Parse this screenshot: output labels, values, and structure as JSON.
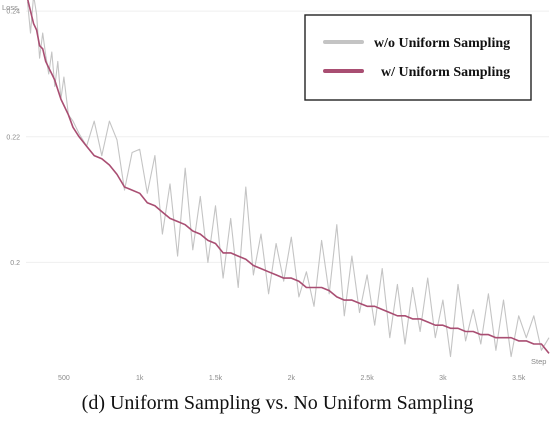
{
  "caption": "(d) Uniform Sampling vs. No Uniform Sampling",
  "chart_data": {
    "type": "line",
    "ylabel": "Loss",
    "xlabel": "Step",
    "xlim": [
      250,
      3700
    ],
    "ylim": [
      0.1835,
      0.2405
    ],
    "x_ticks": [
      500,
      1000,
      1500,
      2000,
      2500,
      3000,
      3500
    ],
    "x_tick_labels": [
      "500",
      "1k",
      "1.5k",
      "2k",
      "2.5k",
      "3k",
      "3.5k"
    ],
    "y_ticks": [
      0.2,
      0.22,
      0.24
    ],
    "y_tick_labels": [
      "0.2",
      "0.22",
      "0.24"
    ],
    "grid": true,
    "legend_position": "top-right",
    "series": [
      {
        "name": "w/o Uniform Sampling",
        "color": "#c4c4c4",
        "x": [
          260,
          280,
          300,
          320,
          340,
          360,
          380,
          400,
          420,
          440,
          460,
          480,
          500,
          530,
          560,
          600,
          650,
          700,
          750,
          800,
          850,
          900,
          950,
          1000,
          1050,
          1100,
          1150,
          1200,
          1250,
          1300,
          1350,
          1400,
          1450,
          1500,
          1550,
          1600,
          1650,
          1700,
          1750,
          1800,
          1850,
          1900,
          1950,
          2000,
          2050,
          2100,
          2150,
          2200,
          2250,
          2300,
          2350,
          2400,
          2450,
          2500,
          2550,
          2600,
          2650,
          2700,
          2750,
          2800,
          2850,
          2900,
          2950,
          3000,
          3050,
          3100,
          3150,
          3200,
          3250,
          3300,
          3350,
          3400,
          3450,
          3500,
          3550,
          3600,
          3650,
          3700
        ],
        "values": [
          0.2415,
          0.2365,
          0.2425,
          0.2395,
          0.2325,
          0.2365,
          0.233,
          0.23,
          0.2335,
          0.228,
          0.232,
          0.226,
          0.2295,
          0.2235,
          0.2225,
          0.2205,
          0.2185,
          0.2225,
          0.217,
          0.2225,
          0.2195,
          0.2115,
          0.2175,
          0.218,
          0.211,
          0.217,
          0.2045,
          0.2125,
          0.201,
          0.215,
          0.202,
          0.2105,
          0.2,
          0.209,
          0.1975,
          0.207,
          0.196,
          0.212,
          0.198,
          0.2045,
          0.195,
          0.203,
          0.197,
          0.204,
          0.1945,
          0.1985,
          0.193,
          0.2035,
          0.195,
          0.206,
          0.1915,
          0.201,
          0.192,
          0.198,
          0.19,
          0.199,
          0.188,
          0.1965,
          0.187,
          0.196,
          0.189,
          0.1975,
          0.188,
          0.194,
          0.185,
          0.1965,
          0.1875,
          0.1925,
          0.187,
          0.195,
          0.186,
          0.194,
          0.185,
          0.1915,
          0.188,
          0.1915,
          0.186,
          0.188
        ]
      },
      {
        "name": "w/ Uniform Sampling",
        "color": "#a94e72",
        "x": [
          260,
          280,
          300,
          320,
          340,
          360,
          380,
          400,
          420,
          440,
          460,
          480,
          500,
          530,
          560,
          600,
          650,
          700,
          750,
          800,
          850,
          900,
          950,
          1000,
          1050,
          1100,
          1150,
          1200,
          1250,
          1300,
          1350,
          1400,
          1450,
          1500,
          1550,
          1600,
          1650,
          1700,
          1750,
          1800,
          1850,
          1900,
          1950,
          2000,
          2050,
          2100,
          2150,
          2200,
          2250,
          2300,
          2350,
          2400,
          2450,
          2500,
          2550,
          2600,
          2650,
          2700,
          2750,
          2800,
          2850,
          2900,
          2950,
          3000,
          3050,
          3100,
          3150,
          3200,
          3250,
          3300,
          3350,
          3400,
          3450,
          3500,
          3550,
          3600,
          3650,
          3700
        ],
        "values": [
          0.242,
          0.24,
          0.238,
          0.237,
          0.2345,
          0.234,
          0.232,
          0.231,
          0.23,
          0.229,
          0.2275,
          0.226,
          0.225,
          0.2235,
          0.2215,
          0.22,
          0.2185,
          0.217,
          0.2165,
          0.2155,
          0.214,
          0.212,
          0.2115,
          0.211,
          0.2095,
          0.209,
          0.208,
          0.207,
          0.2065,
          0.206,
          0.205,
          0.2045,
          0.2035,
          0.203,
          0.2015,
          0.2015,
          0.201,
          0.2005,
          0.1995,
          0.199,
          0.1985,
          0.198,
          0.1975,
          0.1975,
          0.197,
          0.196,
          0.196,
          0.196,
          0.1955,
          0.1945,
          0.194,
          0.194,
          0.1935,
          0.193,
          0.193,
          0.1925,
          0.192,
          0.1915,
          0.1915,
          0.191,
          0.191,
          0.1905,
          0.19,
          0.19,
          0.1895,
          0.1895,
          0.189,
          0.189,
          0.1885,
          0.1885,
          0.188,
          0.188,
          0.188,
          0.1875,
          0.1875,
          0.187,
          0.187,
          0.1855
        ]
      }
    ]
  }
}
